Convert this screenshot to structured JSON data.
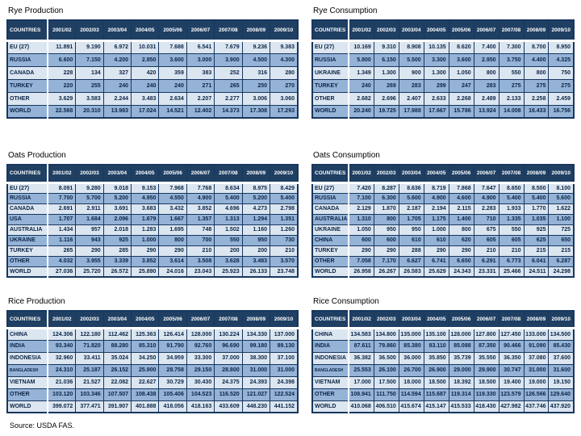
{
  "page": {
    "source_label": "Source:   USDA FAS."
  },
  "colors": {
    "header_bg": "#1F3F63",
    "border": "#17375E",
    "row_light": "#DCE6F1",
    "row_medium": "#95B3D7",
    "header_text": "#FFFFFF",
    "cell_text": "#0B2545"
  },
  "columns": [
    "COUNTRIES",
    "2001/02",
    "2002/03",
    "2003/04",
    "2004/05",
    "2005/06",
    "2006/07",
    "2007/08",
    "2008/09",
    "2009/10"
  ],
  "tables": [
    {
      "title": "Rye Production",
      "rows": [
        {
          "country": "EU (27)",
          "values": [
            "11.891",
            "9.190",
            "6.972",
            "10.031",
            "7.688",
            "6.541",
            "7.679",
            "9.236",
            "9.383"
          ]
        },
        {
          "country": "RUSSIA",
          "values": [
            "6.600",
            "7.150",
            "4.200",
            "2.850",
            "3.600",
            "3.000",
            "3.900",
            "4.500",
            "4.300"
          ]
        },
        {
          "country": "CANADA",
          "values": [
            "228",
            "134",
            "327",
            "420",
            "359",
            "383",
            "252",
            "316",
            "280"
          ]
        },
        {
          "country": "TURKEY",
          "values": [
            "220",
            "255",
            "240",
            "240",
            "240",
            "271",
            "265",
            "250",
            "270"
          ]
        },
        {
          "country": "OTHER",
          "values": [
            "3.629",
            "3.583",
            "2.244",
            "3.483",
            "2.634",
            "2.207",
            "2.277",
            "3.006",
            "3.060"
          ]
        },
        {
          "country": "WORLD",
          "values": [
            "22.568",
            "20.310",
            "13.983",
            "17.024",
            "14.521",
            "12.402",
            "14.373",
            "17.308",
            "17.293"
          ]
        }
      ]
    },
    {
      "title": "Rye Consumption",
      "rows": [
        {
          "country": "EU (27)",
          "values": [
            "10.169",
            "9.310",
            "8.908",
            "10.135",
            "8.620",
            "7.400",
            "7.300",
            "8.700",
            "8.950"
          ]
        },
        {
          "country": "RUSSIA",
          "values": [
            "5.800",
            "6.150",
            "5.500",
            "3.300",
            "3.600",
            "2.950",
            "3.750",
            "4.400",
            "4.325"
          ]
        },
        {
          "country": "UKRAINE",
          "values": [
            "1.349",
            "1.300",
            "900",
            "1.300",
            "1.050",
            "800",
            "550",
            "800",
            "750"
          ]
        },
        {
          "country": "TURKEY",
          "values": [
            "240",
            "269",
            "283",
            "299",
            "247",
            "283",
            "275",
            "275",
            "275"
          ]
        },
        {
          "country": "OTHER",
          "values": [
            "2.682",
            "2.696",
            "2.407",
            "2.633",
            "2.268",
            "2.489",
            "2.133",
            "2.258",
            "2.459"
          ]
        },
        {
          "country": "WORLD",
          "values": [
            "20.240",
            "19.725",
            "17.988",
            "17.667",
            "15.786",
            "13.924",
            "14.008",
            "16.433",
            "16.756"
          ]
        }
      ]
    },
    {
      "title": "Oats Production",
      "rows": [
        {
          "country": "EU (27)",
          "values": [
            "8.091",
            "9.280",
            "9.018",
            "9.153",
            "7.968",
            "7.768",
            "8.634",
            "8.975",
            "8.429"
          ]
        },
        {
          "country": "RUSSIA",
          "values": [
            "7.700",
            "5.700",
            "5.200",
            "4.950",
            "4.550",
            "4.900",
            "5.400",
            "5.200",
            "5.400"
          ]
        },
        {
          "country": "CANADA",
          "values": [
            "2.691",
            "2.911",
            "3.691",
            "3.683",
            "3.432",
            "3.852",
            "4.696",
            "4.273",
            "2.798"
          ]
        },
        {
          "country": "USA",
          "values": [
            "1.707",
            "1.684",
            "2.096",
            "1.679",
            "1.667",
            "1.357",
            "1.313",
            "1.294",
            "1.351"
          ]
        },
        {
          "country": "AUSTRALIA",
          "values": [
            "1.434",
            "957",
            "2.018",
            "1.283",
            "1.695",
            "748",
            "1.502",
            "1.160",
            "1.260"
          ]
        },
        {
          "country": "UKRAINE",
          "values": [
            "1.116",
            "943",
            "925",
            "1.000",
            "800",
            "700",
            "550",
            "950",
            "730"
          ]
        },
        {
          "country": "TURKEY",
          "values": [
            "265",
            "290",
            "285",
            "290",
            "290",
            "210",
            "200",
            "200",
            "210"
          ]
        },
        {
          "country": "OTHER",
          "values": [
            "4.032",
            "3.955",
            "3.339",
            "3.852",
            "3.614",
            "3.508",
            "3.628",
            "3.483",
            "3.570"
          ]
        },
        {
          "country": "WORLD",
          "values": [
            "27.036",
            "25.720",
            "26.572",
            "25.890",
            "24.016",
            "23.043",
            "25.923",
            "26.133",
            "23.748"
          ]
        }
      ]
    },
    {
      "title": "Oats Consumption",
      "rows": [
        {
          "country": "EU (27)",
          "values": [
            "7.420",
            "8.287",
            "8.636",
            "8.719",
            "7.868",
            "7.647",
            "8.650",
            "8.500",
            "8.100"
          ]
        },
        {
          "country": "RUSSIA",
          "values": [
            "7.100",
            "6.300",
            "5.600",
            "4.900",
            "4.600",
            "4.900",
            "5.400",
            "5.400",
            "5.600"
          ]
        },
        {
          "country": "CANADA",
          "values": [
            "2.129",
            "1.870",
            "2.187",
            "2.194",
            "2.115",
            "2.283",
            "1.933",
            "1.770",
            "1.622"
          ]
        },
        {
          "country": "AUSTRALIA",
          "values": [
            "1.310",
            "800",
            "1.705",
            "1.175",
            "1.400",
            "710",
            "1.335",
            "1.035",
            "1.100"
          ]
        },
        {
          "country": "UKRAINE",
          "values": [
            "1.050",
            "950",
            "950",
            "1.000",
            "800",
            "675",
            "550",
            "925",
            "725"
          ]
        },
        {
          "country": "CHINA",
          "values": [
            "600",
            "600",
            "610",
            "610",
            "620",
            "605",
            "605",
            "625",
            "650"
          ]
        },
        {
          "country": "TURKEY",
          "values": [
            "290",
            "290",
            "288",
            "290",
            "290",
            "210",
            "210",
            "215",
            "215"
          ]
        },
        {
          "country": "OTHER",
          "values": [
            "7.058",
            "7.170",
            "6.627",
            "6.741",
            "6.650",
            "6.291",
            "6.773",
            "6.041",
            "6.287"
          ]
        },
        {
          "country": "WORLD",
          "values": [
            "26.958",
            "26.267",
            "26.583",
            "25.629",
            "24.343",
            "23.331",
            "25.466",
            "24.511",
            "24.298"
          ]
        }
      ]
    },
    {
      "title": "Rice Production",
      "rows": [
        {
          "country": "CHINA",
          "values": [
            "124.306",
            "122.180",
            "112.462",
            "125.363",
            "126.414",
            "128.000",
            "130.224",
            "134.330",
            "137.000"
          ]
        },
        {
          "country": "INDIA",
          "values": [
            "93.340",
            "71.820",
            "88.280",
            "85.310",
            "91.790",
            "92.760",
            "96.690",
            "99.180",
            "89.130"
          ]
        },
        {
          "country": "INDONESIA",
          "values": [
            "32.960",
            "33.411",
            "35.024",
            "34.250",
            "34.959",
            "33.300",
            "37.000",
            "38.300",
            "37.100"
          ]
        },
        {
          "country": "BANGLADESH",
          "values": [
            "24.310",
            "25.187",
            "26.152",
            "25.900",
            "28.758",
            "29.150",
            "28.800",
            "31.000",
            "31.000"
          ]
        },
        {
          "country": "VIETNAM",
          "values": [
            "21.036",
            "21.527",
            "22.082",
            "22.627",
            "30.729",
            "30.430",
            "24.375",
            "24.393",
            "24.398"
          ]
        },
        {
          "country": "OTHER",
          "values": [
            "103.120",
            "103.346",
            "107.507",
            "108.438",
            "105.406",
            "104.523",
            "116.520",
            "121.027",
            "122.524"
          ]
        },
        {
          "country": "WORLD",
          "values": [
            "399.072",
            "377.471",
            "391.907",
            "401.888",
            "418.056",
            "418.163",
            "433.609",
            "448.230",
            "441.152"
          ]
        }
      ]
    },
    {
      "title": "Rice Consumption",
      "rows": [
        {
          "country": "CHINA",
          "values": [
            "134.583",
            "134.800",
            "135.000",
            "135.100",
            "128.000",
            "127.800",
            "127.450",
            "133.000",
            "134.500"
          ]
        },
        {
          "country": "INDIA",
          "values": [
            "87.611",
            "79.860",
            "85.380",
            "83.110",
            "85.088",
            "87.350",
            "90.466",
            "91.090",
            "85.430"
          ]
        },
        {
          "country": "INDONESIA",
          "values": [
            "36.382",
            "36.500",
            "36.000",
            "35.850",
            "35.739",
            "35.550",
            "36.350",
            "37.080",
            "37.600"
          ]
        },
        {
          "country": "BANGLADESH",
          "values": [
            "25.553",
            "26.100",
            "26.700",
            "26.900",
            "29.000",
            "29.900",
            "30.747",
            "31.000",
            "31.600"
          ]
        },
        {
          "country": "VIETNAM",
          "values": [
            "17.000",
            "17.500",
            "18.000",
            "18.500",
            "18.392",
            "18.500",
            "19.400",
            "19.000",
            "19.150"
          ]
        },
        {
          "country": "OTHER",
          "values": [
            "108.941",
            "111.750",
            "114.594",
            "115.687",
            "119.314",
            "119.330",
            "123.579",
            "126.566",
            "129.640"
          ]
        },
        {
          "country": "WORLD",
          "values": [
            "410.068",
            "406.510",
            "415.674",
            "415.147",
            "415.533",
            "418.430",
            "427.982",
            "437.746",
            "437.920"
          ]
        }
      ]
    }
  ]
}
